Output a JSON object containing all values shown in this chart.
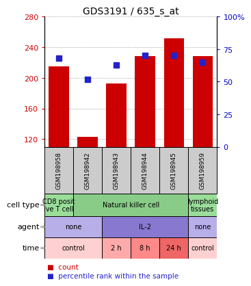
{
  "title": "GDS3191 / 635_s_at",
  "samples": [
    "GSM198958",
    "GSM198942",
    "GSM198943",
    "GSM198944",
    "GSM198945",
    "GSM198959"
  ],
  "count_values": [
    215,
    123,
    193,
    228,
    252,
    228
  ],
  "percentile_values": [
    68,
    52,
    63,
    70,
    70,
    65
  ],
  "ylim_left": [
    110,
    280
  ],
  "ylim_right": [
    0,
    100
  ],
  "left_ticks": [
    120,
    160,
    200,
    240,
    280
  ],
  "right_ticks": [
    0,
    25,
    50,
    75,
    100
  ],
  "bar_color": "#cc0000",
  "dot_color": "#2222cc",
  "cell_types": [
    {
      "label": "CD8 posit\nive T cell",
      "span": [
        0,
        1
      ],
      "color": "#99dd99"
    },
    {
      "label": "Natural killer cell",
      "span": [
        1,
        5
      ],
      "color": "#88cc88"
    },
    {
      "label": "lymphoid\ntissues",
      "span": [
        5,
        6
      ],
      "color": "#99dd99"
    }
  ],
  "agents": [
    {
      "label": "none",
      "span": [
        0,
        2
      ],
      "color": "#b8aee8"
    },
    {
      "label": "IL-2",
      "span": [
        2,
        5
      ],
      "color": "#8878d0"
    },
    {
      "label": "none",
      "span": [
        5,
        6
      ],
      "color": "#b8aee8"
    }
  ],
  "times": [
    {
      "label": "control",
      "span": [
        0,
        2
      ],
      "color": "#ffd0d0"
    },
    {
      "label": "2 h",
      "span": [
        2,
        3
      ],
      "color": "#ffaaaa"
    },
    {
      "label": "8 h",
      "span": [
        3,
        4
      ],
      "color": "#ff8888"
    },
    {
      "label": "24 h",
      "span": [
        4,
        5
      ],
      "color": "#ee6666"
    },
    {
      "label": "control",
      "span": [
        5,
        6
      ],
      "color": "#ffd0d0"
    }
  ],
  "sample_box_color": "#cccccc",
  "grid_color": "#888888",
  "left_tick_color": "#cc0000",
  "right_tick_color": "#0000cc",
  "left_label_color": "#cc0000",
  "right_label_color": "#0000cc"
}
